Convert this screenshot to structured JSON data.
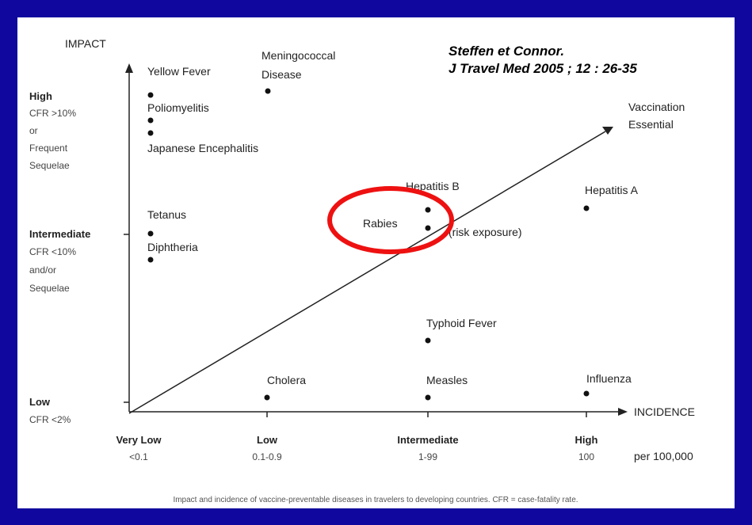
{
  "citation": [
    "Steffen et Connor.",
    "J Travel Med  2005 ; 12 : 26-35"
  ],
  "y_axis": {
    "title": "IMPACT",
    "levels": [
      {
        "name": "High",
        "detail": [
          "CFR >10%",
          "or",
          "Frequent",
          "Sequelae"
        ]
      },
      {
        "name": "Intermediate",
        "detail": [
          "CFR <10%",
          "and/or",
          "Sequelae"
        ]
      },
      {
        "name": "Low",
        "detail": [
          "CFR <2%"
        ]
      }
    ]
  },
  "x_axis": {
    "title": "INCIDENCE",
    "unit": "per 100,000",
    "levels": [
      {
        "name": "Very Low",
        "detail": "<0.1"
      },
      {
        "name": "Low",
        "detail": "0.1-0.9"
      },
      {
        "name": "Intermediate",
        "detail": "1-99"
      },
      {
        "name": "High",
        "detail": "100"
      }
    ]
  },
  "diagonal_label": [
    "Vaccination",
    "Essential"
  ],
  "diseases": [
    {
      "label": [
        "Yellow Fever"
      ]
    },
    {
      "label": [
        "Poliomyelitis"
      ]
    },
    {
      "label": [
        "Japanese Encephalitis"
      ]
    },
    {
      "label": [
        "Meningococcal",
        "Disease"
      ]
    },
    {
      "label": [
        "Tetanus"
      ]
    },
    {
      "label": [
        "Diphtheria"
      ]
    },
    {
      "label": [
        "Hepatitis B"
      ]
    },
    {
      "label": [
        "Rabies"
      ]
    },
    {
      "label": [
        "(risk exposure)"
      ]
    },
    {
      "label": [
        "Hepatitis A"
      ]
    },
    {
      "label": [
        "Typhoid Fever"
      ]
    },
    {
      "label": [
        "Cholera"
      ]
    },
    {
      "label": [
        "Measles"
      ]
    },
    {
      "label": [
        "Influenza"
      ]
    }
  ],
  "caption": "Impact and incidence of vaccine-preventable diseases in travelers to developing countries. CFR = case-fatality rate."
}
